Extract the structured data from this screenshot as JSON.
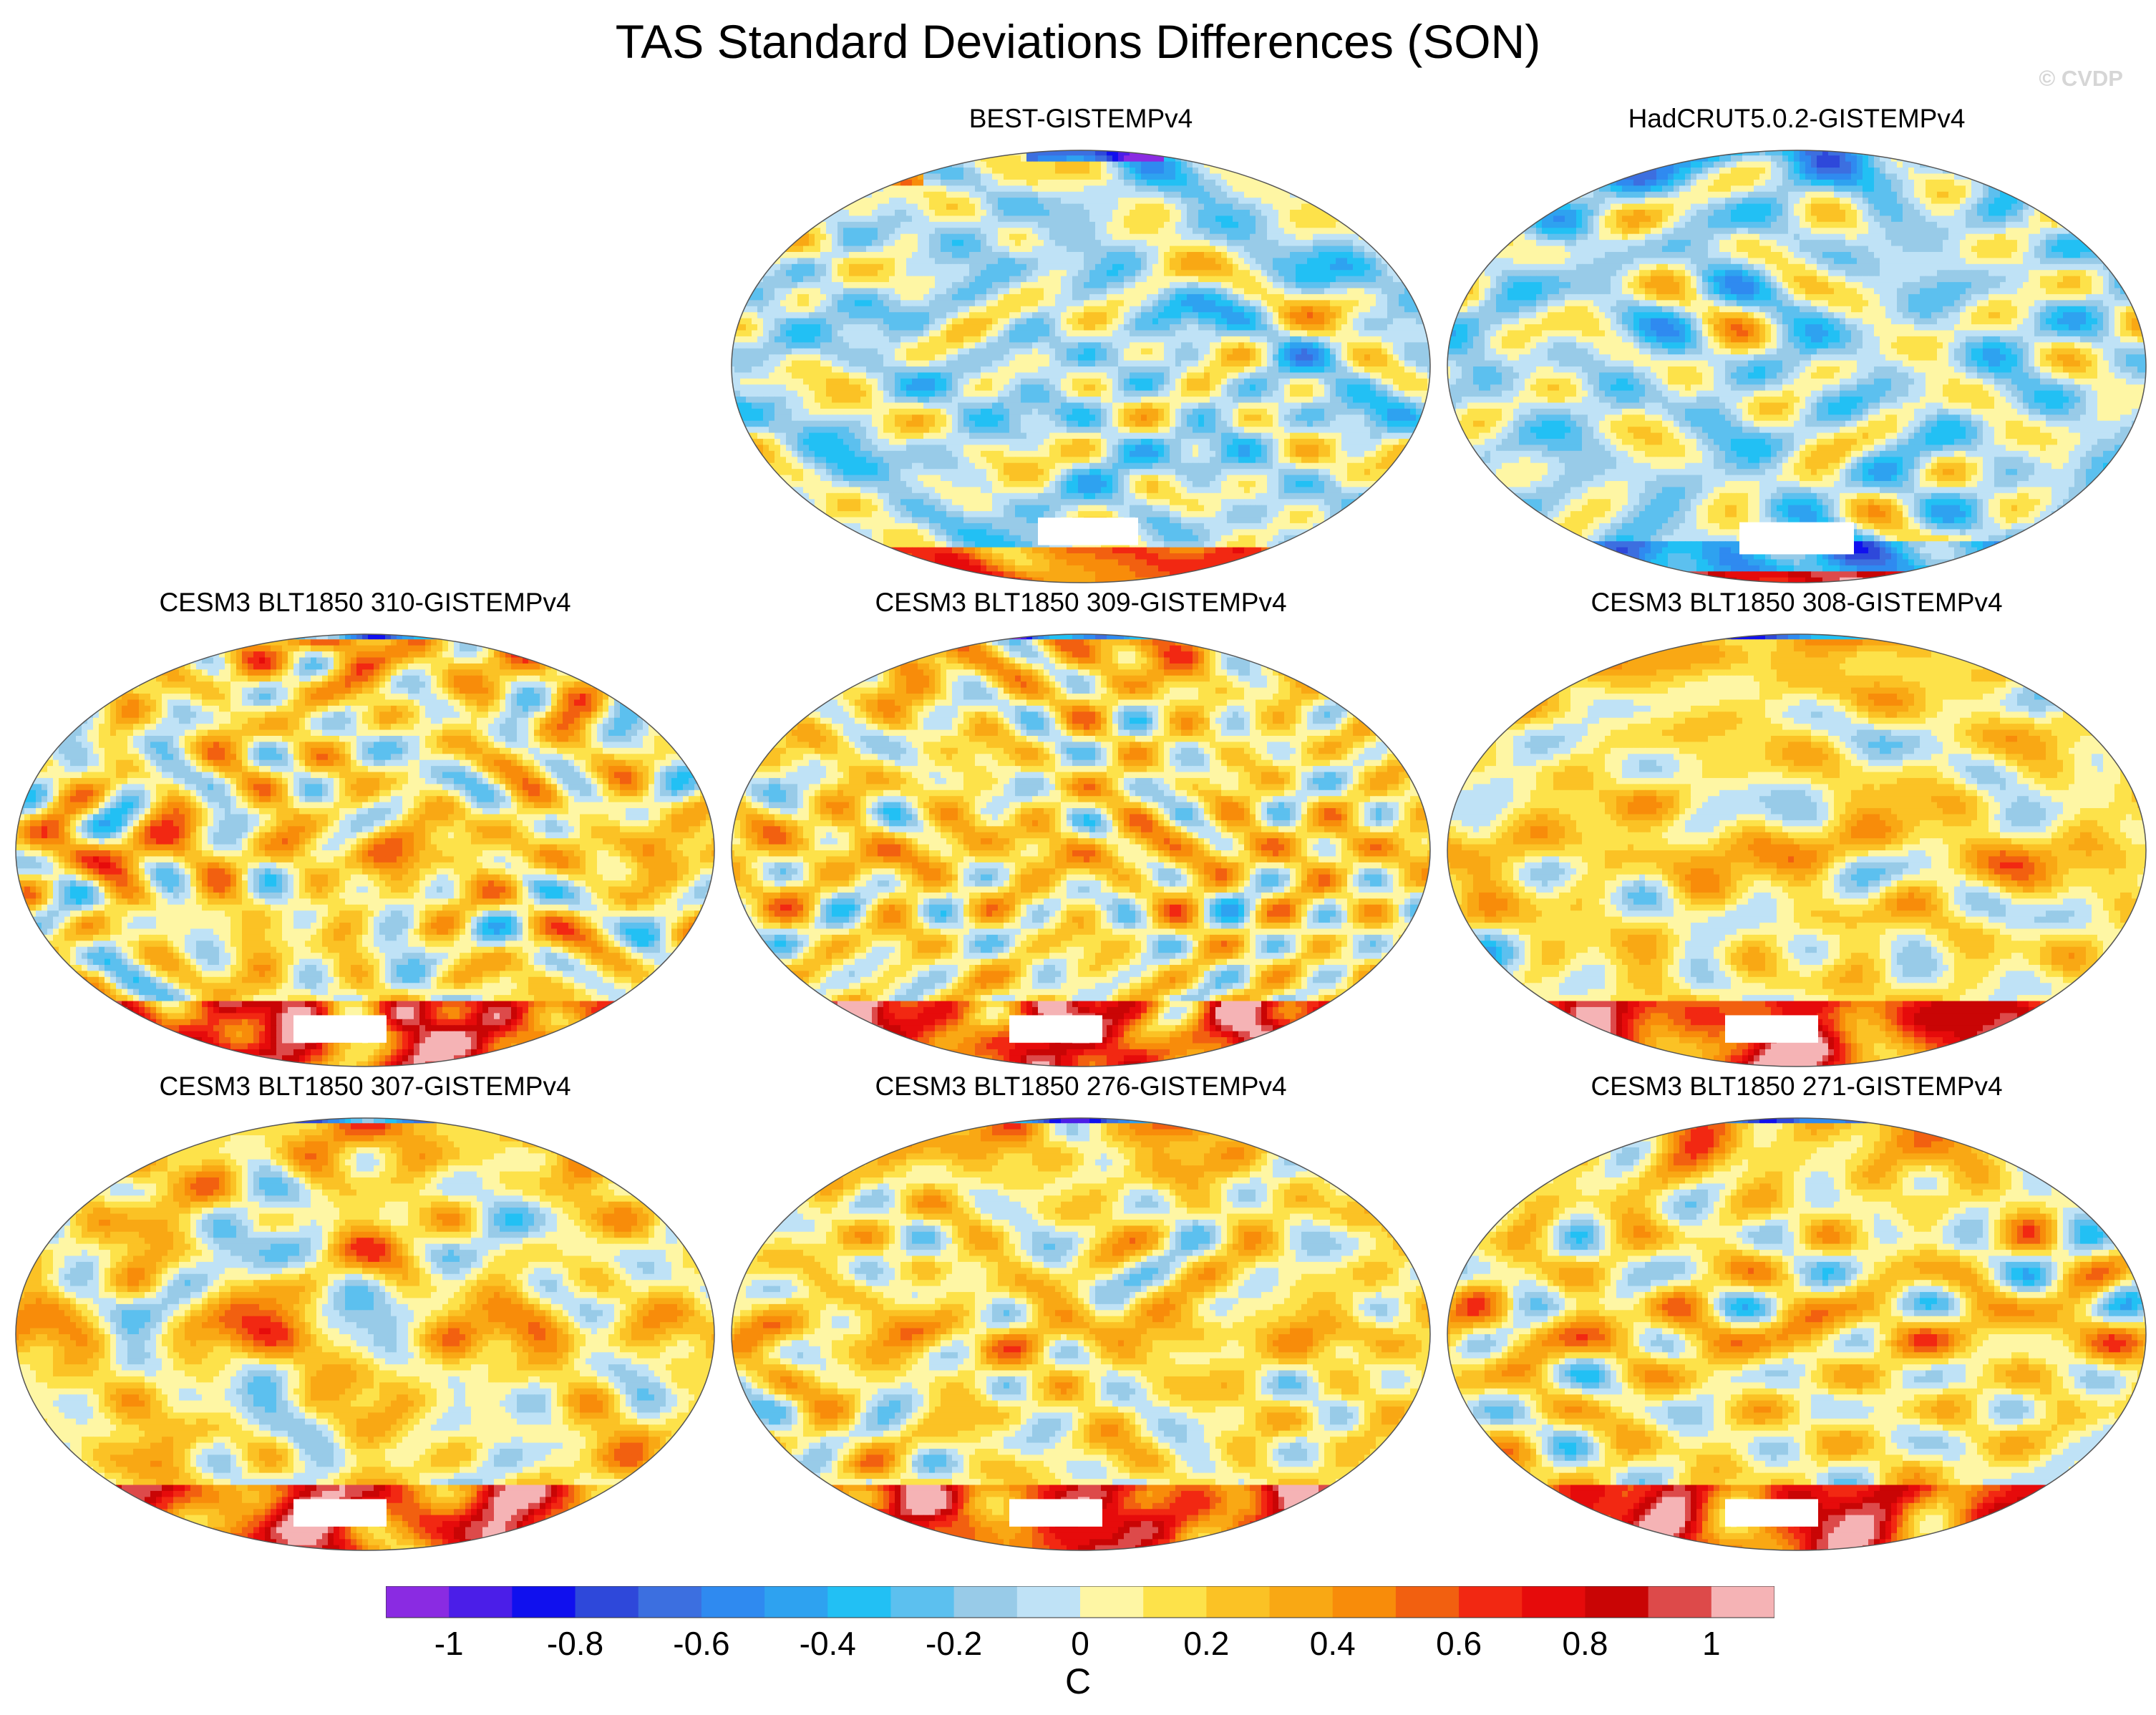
{
  "figure": {
    "title": "TAS Standard Deviations Differences (SON)",
    "credit": "© CVDP"
  },
  "panels": [
    {
      "label": "BEST-GISTEMPv4",
      "seed": 11,
      "style": "best"
    },
    {
      "label": "HadCRUT5.0.2-GISTEMPv4",
      "seed": 23,
      "style": "had"
    },
    {
      "label": "CESM3 BLT1850 310-GISTEMPv4",
      "seed": 31,
      "style": "cesm"
    },
    {
      "label": "CESM3 BLT1850 309-GISTEMPv4",
      "seed": 47,
      "style": "cesm"
    },
    {
      "label": "CESM3 BLT1850 308-GISTEMPv4",
      "seed": 53,
      "style": "cesm"
    },
    {
      "label": "CESM3 BLT1850 307-GISTEMPv4",
      "seed": 67,
      "style": "cesm"
    },
    {
      "label": "CESM3 BLT1850 276-GISTEMPv4",
      "seed": 71,
      "style": "cesm"
    },
    {
      "label": "CESM3 BLT1850 271-GISTEMPv4",
      "seed": 89,
      "style": "cesm"
    }
  ],
  "colorbar": {
    "unit": "C",
    "tick_labels": [
      "-1",
      "-0.8",
      "-0.6",
      "-0.4",
      "-0.2",
      "0",
      "0.2",
      "0.4",
      "0.6",
      "0.8",
      "1"
    ],
    "tick_values": [
      -1,
      -0.8,
      -0.6,
      -0.4,
      -0.2,
      0,
      0.2,
      0.4,
      0.6,
      0.8,
      1
    ],
    "levels": [
      -1.1,
      -1,
      -0.9,
      -0.8,
      -0.7,
      -0.6,
      -0.5,
      -0.4,
      -0.3,
      -0.2,
      -0.1,
      0,
      0.1,
      0.2,
      0.3,
      0.4,
      0.5,
      0.6,
      0.7,
      0.8,
      0.9,
      1,
      1.1
    ],
    "colors": [
      "#8a2be2",
      "#4b1ee8",
      "#1010ee",
      "#2e48da",
      "#3c6fe0",
      "#2f8af0",
      "#2ea2f0",
      "#22c0f4",
      "#5cc0ef",
      "#98cbe8",
      "#bfe2f6",
      "#fef6a4",
      "#fde24a",
      "#fbc225",
      "#f9a814",
      "#f88c0a",
      "#f26010",
      "#f22812",
      "#e60b0b",
      "#c90505",
      "#dd4a4a",
      "#f5b3b5"
    ]
  },
  "chart_data": {
    "type": "heatmap",
    "title": "TAS Standard Deviations Differences (SON)",
    "projection": "global map (Robinson-like)",
    "unit": "C",
    "range": [
      -1.1,
      1.1
    ],
    "panels": [
      "BEST-GISTEMPv4",
      "HadCRUT5.0.2-GISTEMPv4",
      "CESM3 BLT1850 310-GISTEMPv4",
      "CESM3 BLT1850 309-GISTEMPv4",
      "CESM3 BLT1850 308-GISTEMPv4",
      "CESM3 BLT1850 307-GISTEMPv4",
      "CESM3 BLT1850 276-GISTEMPv4",
      "CESM3 BLT1850 271-GISTEMPv4"
    ]
  }
}
